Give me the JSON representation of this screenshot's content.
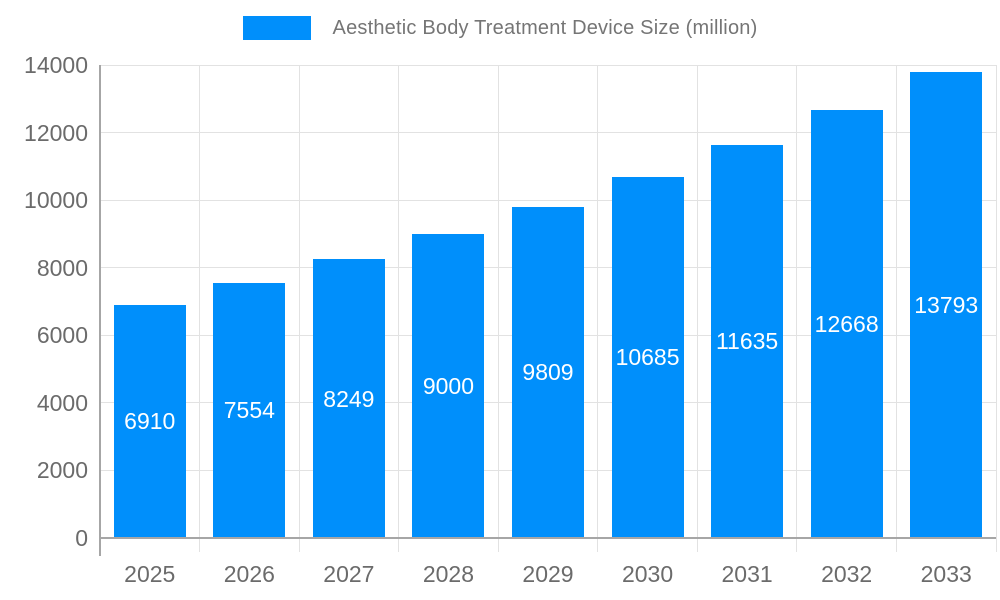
{
  "chart_data": {
    "type": "bar",
    "title": "Aesthetic Body Treatment Device Size (million)",
    "categories": [
      "2025",
      "2026",
      "2027",
      "2028",
      "2029",
      "2030",
      "2031",
      "2032",
      "2033"
    ],
    "values": [
      6910,
      7554,
      8249,
      9000,
      9809,
      10685,
      11635,
      12668,
      13793
    ],
    "xlabel": "",
    "ylabel": "",
    "ylim": [
      0,
      14000
    ],
    "ytick_step": 2000,
    "grid": "on",
    "legend_position": "top-center",
    "colors": {
      "bar": "#008FFB",
      "bar_value_label": "#ffffff",
      "axis_text": "#6b6b6b",
      "legend_text": "#757575",
      "gridline": "#e2e2e2",
      "axis_line": "#a6a6a6",
      "background": "#ffffff"
    }
  }
}
